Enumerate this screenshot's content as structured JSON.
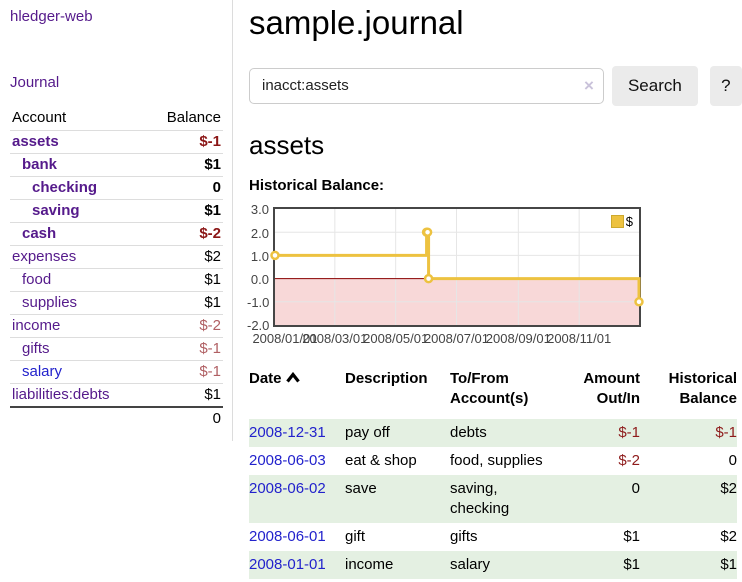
{
  "sidebar": {
    "brand": "hledger-web",
    "nav": {
      "journal": "Journal"
    },
    "accounts_table": {
      "headers": {
        "account": "Account",
        "balance": "Balance"
      },
      "rows": [
        {
          "name": "assets",
          "depth": 0,
          "bold": true,
          "blue": false,
          "balance": "$-1",
          "style": "neg-bold"
        },
        {
          "name": "bank",
          "depth": 1,
          "bold": true,
          "blue": false,
          "balance": "$1",
          "style": "pos-bold"
        },
        {
          "name": "checking",
          "depth": 2,
          "bold": true,
          "blue": false,
          "balance": "0",
          "style": "pos-bold"
        },
        {
          "name": "saving",
          "depth": 2,
          "bold": true,
          "blue": false,
          "balance": "$1",
          "style": "pos-bold"
        },
        {
          "name": "cash",
          "depth": 1,
          "bold": true,
          "blue": false,
          "balance": "$-2",
          "style": "neg-bold"
        },
        {
          "name": "expenses",
          "depth": 0,
          "bold": false,
          "blue": false,
          "balance": "$2",
          "style": "pos"
        },
        {
          "name": "food",
          "depth": 1,
          "bold": false,
          "blue": false,
          "balance": "$1",
          "style": "pos"
        },
        {
          "name": "supplies",
          "depth": 1,
          "bold": false,
          "blue": false,
          "balance": "$1",
          "style": "pos"
        },
        {
          "name": "income",
          "depth": 0,
          "bold": false,
          "blue": false,
          "balance": "$-2",
          "style": "neg"
        },
        {
          "name": "gifts",
          "depth": 1,
          "bold": false,
          "blue": false,
          "balance": "$-1",
          "style": "neg"
        },
        {
          "name": "salary",
          "depth": 1,
          "bold": false,
          "blue": true,
          "balance": "$-1",
          "style": "neg"
        },
        {
          "name": "liabilities:debts",
          "depth": 0,
          "bold": false,
          "blue": false,
          "balance": "$1",
          "style": "pos"
        }
      ],
      "total": "0"
    }
  },
  "main": {
    "title": "sample.journal",
    "search": {
      "value": "inacct:assets",
      "clear_label": "×",
      "button_label": "Search",
      "help_label": "?"
    },
    "account_heading": "assets",
    "chart_label": "Historical Balance:"
  },
  "chart_data": {
    "type": "line",
    "mode": "steps",
    "title": "Historical Balance:",
    "series": [
      {
        "name": "$",
        "color": "#edc240",
        "points": [
          [
            "2008-01-01",
            1
          ],
          [
            "2008-06-01",
            2
          ],
          [
            "2008-06-02",
            2
          ],
          [
            "2008-06-03",
            0
          ],
          [
            "2008-12-31",
            -1
          ]
        ]
      }
    ],
    "xlim": [
      "2008-01-01",
      "2008-12-31"
    ],
    "ylim": [
      -2,
      3
    ],
    "y_ticks": [
      3.0,
      2.0,
      1.0,
      0.0,
      -1.0,
      -2.0
    ],
    "x_tick_dates": [
      "2008-01-01",
      "2008-03-01",
      "2008-05-01",
      "2008-07-01",
      "2008-09-01",
      "2008-11-01"
    ],
    "x_tick_labels": [
      "2008/01/01",
      "2008/03/01",
      "2008/05/01",
      "2008/07/01",
      "2008/09/01",
      "2008/11/01"
    ],
    "legend": {
      "label": "$",
      "position": "top-right"
    },
    "grid": true,
    "grid_color": "#e6e6e6",
    "negative_region_color": "#f8d8d8",
    "zero_line_color": "#8b0000"
  },
  "register": {
    "headers": {
      "date": "Date",
      "description": "Description",
      "accounts": "To/From Account(s)",
      "amount": "Amount Out/In",
      "balance": "Historical Balance"
    },
    "sort": {
      "column": "date",
      "direction": "asc"
    },
    "rows": [
      {
        "date": "2008-12-31",
        "description": "pay off",
        "accounts": "debts",
        "amount": "$-1",
        "amount_neg": true,
        "balance": "$-1",
        "balance_neg": true,
        "highlight": true
      },
      {
        "date": "2008-06-03",
        "description": "eat & shop",
        "accounts": "food, supplies",
        "amount": "$-2",
        "amount_neg": true,
        "balance": "0",
        "balance_neg": false,
        "highlight": false
      },
      {
        "date": "2008-06-02",
        "description": "save",
        "accounts": "saving, checking",
        "amount": "0",
        "amount_neg": false,
        "balance": "$2",
        "balance_neg": false,
        "highlight": true
      },
      {
        "date": "2008-06-01",
        "description": "gift",
        "accounts": "gifts",
        "amount": "$1",
        "amount_neg": false,
        "balance": "$2",
        "balance_neg": false,
        "highlight": false
      },
      {
        "date": "2008-01-01",
        "description": "income",
        "accounts": "salary",
        "amount": "$1",
        "amount_neg": false,
        "balance": "$1",
        "balance_neg": false,
        "highlight": true
      }
    ]
  },
  "colors": {
    "link_visited_purple": "#551a8b",
    "link_blue": "#2222cc",
    "negative_bold_red": "#8b1616",
    "negative_soft_red": "#b05f63",
    "register_negative_red": "#8e1b1b",
    "row_highlight_green": "#e4f0e2",
    "chart_series_gold": "#edc240",
    "button_gray": "#ebebeb"
  }
}
